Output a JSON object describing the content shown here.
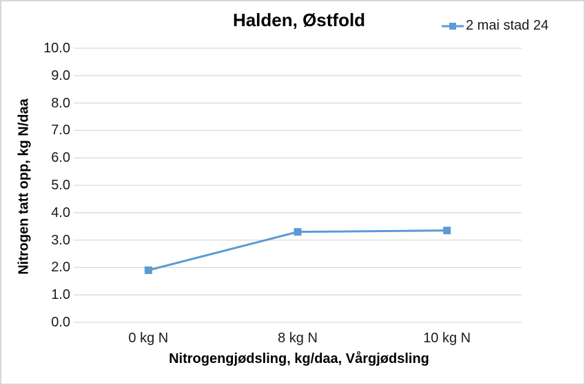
{
  "chart": {
    "title": "Halden, Østfold",
    "legend": {
      "label": "2 mai stad 24",
      "marker": "square-on-line",
      "color": "#5B9BD5"
    }
  },
  "chart_data": {
    "type": "line",
    "title": "Halden, Østfold",
    "categories": [
      "0 kg N",
      "8 kg N",
      "10 kg N"
    ],
    "series": [
      {
        "name": "2 mai stad 24",
        "values": [
          1.9,
          3.3,
          3.35
        ],
        "color": "#5B9BD5",
        "marker": "square"
      }
    ],
    "xlabel": "Nitrogengjødsling, kg/daa, Vårgjødsling",
    "ylabel": "Nitrogen tatt opp, kg N/daa",
    "ylim": [
      0,
      10
    ],
    "ytick_labels": [
      "0.0",
      "1.0",
      "2.0",
      "3.0",
      "4.0",
      "5.0",
      "6.0",
      "7.0",
      "8.0",
      "9.0",
      "10.0"
    ],
    "grid": "horizontal",
    "gridline_color": "#D9D9D9",
    "legend_position": "top-right",
    "background_color": "#FFFFFF"
  }
}
